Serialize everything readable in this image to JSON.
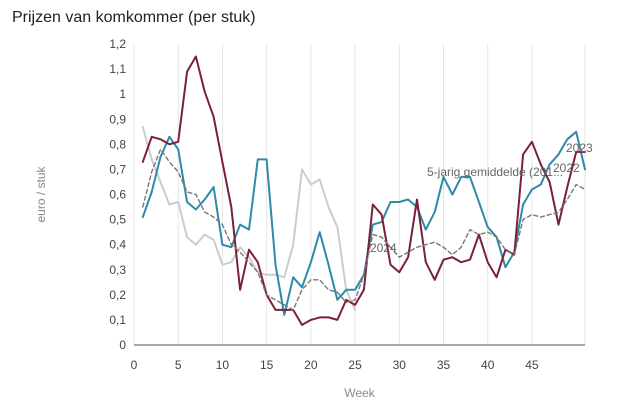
{
  "chart_data": {
    "type": "line",
    "title": "Prijzen van komkommer (per stuk)",
    "xlabel": "Week",
    "ylabel": "euro / stuk",
    "xlim": [
      0,
      51
    ],
    "ylim": [
      0,
      1.2
    ],
    "xticks": [
      0,
      5,
      10,
      15,
      20,
      25,
      30,
      35,
      40,
      45
    ],
    "yticks": [
      0,
      0.1,
      0.2,
      0.3,
      0.4,
      0.5,
      0.6,
      0.7,
      0.8,
      0.9,
      1,
      1.1,
      1.2
    ],
    "ytick_labels": [
      "0",
      "0,1",
      "0,2",
      "0,3",
      "0,4",
      "0,5",
      "0,6",
      "0,7",
      "0,8",
      "0,9",
      "1",
      "1,1",
      "1,2"
    ],
    "grid": "vertical",
    "series": [
      {
        "name": "2024",
        "color": "#cccccc",
        "dash": "solid",
        "x": [
          1,
          2,
          3,
          4,
          5,
          6,
          7,
          8,
          9,
          10,
          11,
          12,
          13,
          14,
          15,
          16,
          17,
          18,
          19,
          20,
          21,
          22,
          23,
          24,
          25
        ],
        "y": [
          0.87,
          0.74,
          0.65,
          0.56,
          0.57,
          0.43,
          0.4,
          0.44,
          0.42,
          0.32,
          0.33,
          0.39,
          0.35,
          0.29,
          0.28,
          0.28,
          0.27,
          0.4,
          0.7,
          0.64,
          0.66,
          0.55,
          0.47,
          0.22,
          0.14
        ]
      },
      {
        "name": "2023",
        "color": "#2e8aa8",
        "dash": "solid",
        "x": [
          1,
          2,
          3,
          4,
          5,
          6,
          7,
          8,
          9,
          10,
          11,
          12,
          13,
          14,
          15,
          16,
          17,
          18,
          19,
          20,
          21,
          22,
          23,
          24,
          25,
          26,
          27,
          28,
          29,
          30,
          31,
          32,
          33,
          34,
          35,
          36,
          37,
          38,
          39,
          40,
          41,
          42,
          43,
          44,
          45,
          46,
          47,
          48,
          49,
          50,
          51
        ],
        "y": [
          0.51,
          0.61,
          0.75,
          0.83,
          0.78,
          0.57,
          0.54,
          0.58,
          0.63,
          0.4,
          0.39,
          0.48,
          0.46,
          0.74,
          0.74,
          0.32,
          0.12,
          0.27,
          0.23,
          0.33,
          0.45,
          0.32,
          0.18,
          0.22,
          0.22,
          0.28,
          0.48,
          0.49,
          0.57,
          0.57,
          0.58,
          0.55,
          0.46,
          0.53,
          0.67,
          0.6,
          0.67,
          0.67,
          0.57,
          0.47,
          0.43,
          0.31,
          0.37,
          0.56,
          0.62,
          0.64,
          0.72,
          0.76,
          0.82,
          0.85,
          0.7
        ]
      },
      {
        "name": "2022",
        "color": "#7b1f3a",
        "dash": "solid",
        "x": [
          1,
          2,
          3,
          4,
          5,
          6,
          7,
          8,
          9,
          10,
          11,
          12,
          13,
          14,
          15,
          16,
          17,
          18,
          19,
          20,
          21,
          22,
          23,
          24,
          25,
          26,
          27,
          28,
          29,
          30,
          31,
          32,
          33,
          34,
          35,
          36,
          37,
          38,
          39,
          40,
          41,
          42,
          43,
          44,
          45,
          46,
          47,
          48,
          49,
          50,
          51
        ],
        "y": [
          0.73,
          0.83,
          0.82,
          0.8,
          0.81,
          1.09,
          1.15,
          1.01,
          0.91,
          0.73,
          0.55,
          0.22,
          0.38,
          0.33,
          0.2,
          0.14,
          0.14,
          0.14,
          0.08,
          0.1,
          0.11,
          0.11,
          0.1,
          0.18,
          0.16,
          0.22,
          0.56,
          0.52,
          0.32,
          0.29,
          0.35,
          0.58,
          0.33,
          0.26,
          0.34,
          0.35,
          0.33,
          0.34,
          0.44,
          0.33,
          0.27,
          0.38,
          0.36,
          0.76,
          0.81,
          0.72,
          0.65,
          0.48,
          0.63,
          0.77,
          0.77
        ]
      },
      {
        "name": "5-jarig gemiddelde (201...",
        "color": "#777777",
        "dash": "dashed",
        "x": [
          1,
          2,
          3,
          4,
          5,
          6,
          7,
          8,
          9,
          10,
          11,
          12,
          13,
          14,
          15,
          16,
          17,
          18,
          19,
          20,
          21,
          22,
          23,
          24,
          25,
          26,
          27,
          28,
          29,
          30,
          31,
          32,
          33,
          34,
          35,
          36,
          37,
          38,
          39,
          40,
          41,
          42,
          43,
          44,
          45,
          46,
          47,
          48,
          49,
          50,
          51
        ],
        "y": [
          0.55,
          0.69,
          0.78,
          0.73,
          0.69,
          0.61,
          0.6,
          0.53,
          0.51,
          0.48,
          0.4,
          0.37,
          0.33,
          0.29,
          0.2,
          0.18,
          0.16,
          0.14,
          0.22,
          0.26,
          0.26,
          0.22,
          0.21,
          0.17,
          0.18,
          0.28,
          0.44,
          0.43,
          0.39,
          0.35,
          0.37,
          0.39,
          0.4,
          0.41,
          0.39,
          0.36,
          0.39,
          0.46,
          0.44,
          0.45,
          0.43,
          0.38,
          0.36,
          0.5,
          0.52,
          0.51,
          0.52,
          0.53,
          0.58,
          0.64,
          0.62
        ]
      }
    ],
    "annotations": [
      {
        "text": "2023",
        "series": "2023"
      },
      {
        "text": "2022",
        "series": "2022"
      },
      {
        "text": "5-jarig gemiddelde (201...",
        "series": "5-jarig gemiddelde (201..."
      },
      {
        "text": "2024",
        "series": "2024"
      }
    ]
  }
}
